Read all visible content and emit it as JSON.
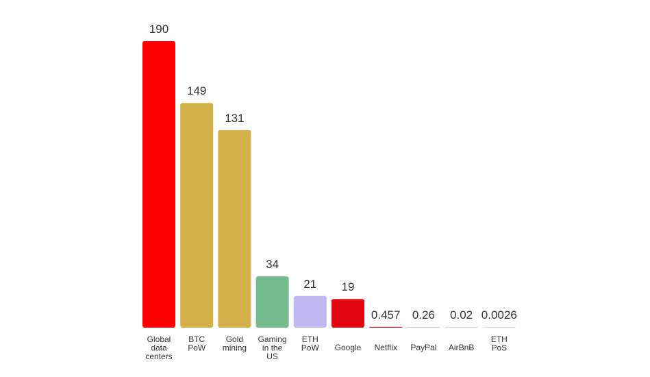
{
  "chart_data": {
    "type": "bar",
    "title": "",
    "xlabel": "",
    "ylabel": "",
    "ylim": [
      0,
      190
    ],
    "grid": false,
    "legend": "none",
    "bars": [
      {
        "category": [
          "Global",
          "data",
          "centers"
        ],
        "value": 190,
        "label": "190",
        "color": "#ff0000"
      },
      {
        "category": [
          "BTC",
          "PoW"
        ],
        "value": 149,
        "label": "149",
        "color": "#d4b04a"
      },
      {
        "category": [
          "Gold",
          "mining"
        ],
        "value": 131,
        "label": "131",
        "color": "#d4b04a"
      },
      {
        "category": [
          "Gaming",
          "in the",
          "US"
        ],
        "value": 34,
        "label": "34",
        "color": "#72bd8b"
      },
      {
        "category": [
          "ETH",
          "PoW"
        ],
        "value": 21,
        "label": "21",
        "color": "#c2b8f2"
      },
      {
        "category": [
          "Google"
        ],
        "value": 19,
        "label": "19",
        "color": "#e30613"
      },
      {
        "category": [
          "Netflix"
        ],
        "value": 0.457,
        "label": "0.457",
        "color": "#c8102e"
      },
      {
        "category": [
          "PayPal"
        ],
        "value": 0.26,
        "label": "0.26",
        "color": "#cccccc"
      },
      {
        "category": [
          "AirBnB"
        ],
        "value": 0.02,
        "label": "0.02",
        "color": "#dddddd"
      },
      {
        "category": [
          "ETH",
          "PoS"
        ],
        "value": 0.0026,
        "label": "0.0026",
        "color": "#dddddd"
      }
    ]
  }
}
